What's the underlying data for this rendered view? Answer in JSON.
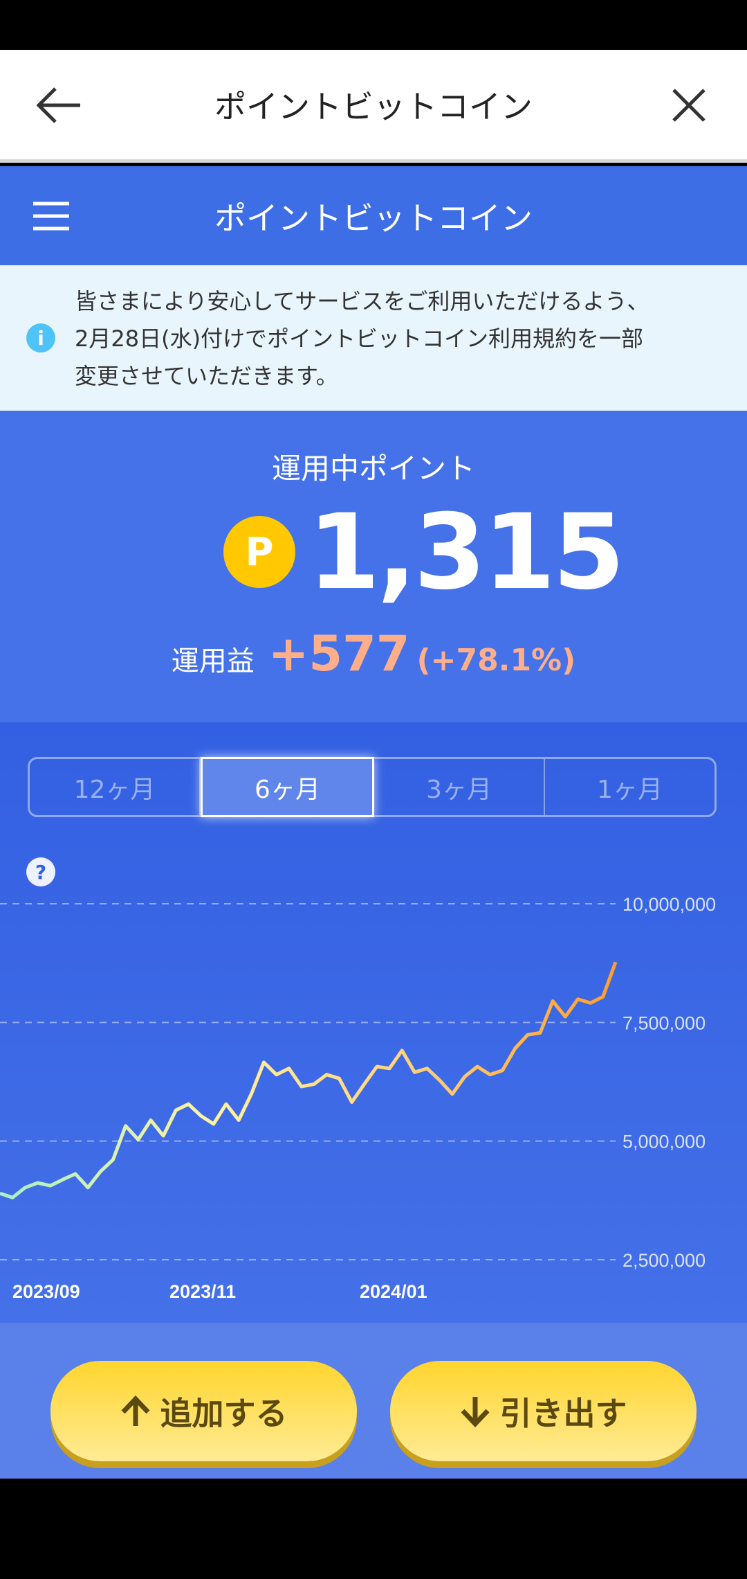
{
  "app_bar": {
    "title": "ポイントビットコイン",
    "back_icon": "arrow-left-icon",
    "close_icon": "close-icon"
  },
  "header": {
    "title": "ポイントビットコイン",
    "menu_icon": "hamburger-menu-icon"
  },
  "notice": {
    "icon": "info-icon",
    "icon_text": "i",
    "lines": [
      "皆さまにより安心してサービスをご利用いただけるよう、",
      "2月28日(水)付けでポイントビットコイン利用規約を一部",
      "変更させていただきます。"
    ]
  },
  "summary": {
    "label": "運用中ポイント",
    "coin_symbol": "P",
    "points": "1,315",
    "gain_label": "運用益",
    "gain_value": "+577",
    "gain_percent": "(+78.1%)"
  },
  "tabs": [
    {
      "label": "12ヶ月",
      "selected": false
    },
    {
      "label": "6ヶ月",
      "selected": true
    },
    {
      "label": "3ヶ月",
      "selected": false
    },
    {
      "label": "1ヶ月",
      "selected": false
    }
  ],
  "help_icon_text": "?",
  "chart_data": {
    "type": "line",
    "y_ticks": [
      "10,000,000",
      "7,500,000",
      "5,000,000",
      "2,500,000"
    ],
    "y_tick_values": [
      10000000,
      7500000,
      5000000,
      2500000
    ],
    "ylim": [
      2500000,
      10000000
    ],
    "x_tick_labels": [
      "2023/09",
      "2023/11",
      "2024/01"
    ],
    "grid": true,
    "gradient_colors": [
      "#a8f0c8",
      "#fff3a0",
      "#ffd27a",
      "#ff9e2c"
    ],
    "values": [
      3900000,
      3810000,
      4020000,
      4120000,
      4060000,
      4190000,
      4310000,
      4020000,
      4360000,
      4610000,
      5320000,
      5030000,
      5440000,
      5110000,
      5650000,
      5780000,
      5530000,
      5360000,
      5780000,
      5440000,
      5990000,
      6660000,
      6400000,
      6530000,
      6150000,
      6200000,
      6400000,
      6320000,
      5820000,
      6200000,
      6570000,
      6530000,
      6910000,
      6450000,
      6530000,
      6280000,
      5990000,
      6360000,
      6570000,
      6400000,
      6490000,
      6950000,
      7240000,
      7280000,
      7950000,
      7620000,
      7990000,
      7910000,
      8040000,
      8770000
    ]
  },
  "buttons": {
    "deposit_label": "追加する",
    "withdraw_label": "引き出す"
  }
}
